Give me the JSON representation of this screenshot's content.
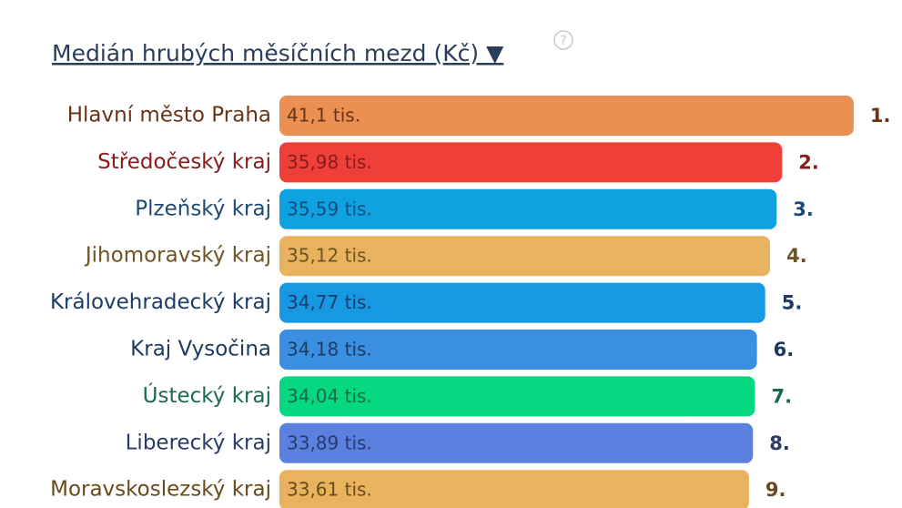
{
  "chart_data": {
    "type": "bar",
    "orientation": "horizontal",
    "title": "Medián hrubých měsíčních mezd (Kč) ▼",
    "help": "?",
    "categories": [
      "Hlavní město Praha",
      "Středočeský kraj",
      "Plzeňský kraj",
      "Jihomoravský kraj",
      "Královehradecký kraj",
      "Kraj Vysočina",
      "Ústecký kraj",
      "Liberecký kraj",
      "Moravskoslezský kraj"
    ],
    "values": [
      41.1,
      35.98,
      35.59,
      35.12,
      34.77,
      34.18,
      34.04,
      33.89,
      33.61
    ],
    "value_labels": [
      "41,1 tis.",
      "35,98 tis.",
      "35,59 tis.",
      "35,12 tis.",
      "34,77 tis.",
      "34,18 tis.",
      "34,04 tis.",
      "33,89 tis.",
      "33,61 tis."
    ],
    "ranks": [
      "1.",
      "2.",
      "3.",
      "4.",
      "5.",
      "6.",
      "7.",
      "8.",
      "9."
    ],
    "colors": [
      "#ec8f52",
      "#ee4038",
      "#0ea2e0",
      "#e8b25e",
      "#1699e2",
      "#3b8fe2",
      "#06d882",
      "#5b80e0",
      "#e8b25e"
    ],
    "label_colors": [
      "#6b3419",
      "#861c1c",
      "#1c4a78",
      "#6e5325",
      "#1c3c6a",
      "#1e3a5c",
      "#1a6a4a",
      "#2a3a6a",
      "#6a4a1c"
    ]
  }
}
